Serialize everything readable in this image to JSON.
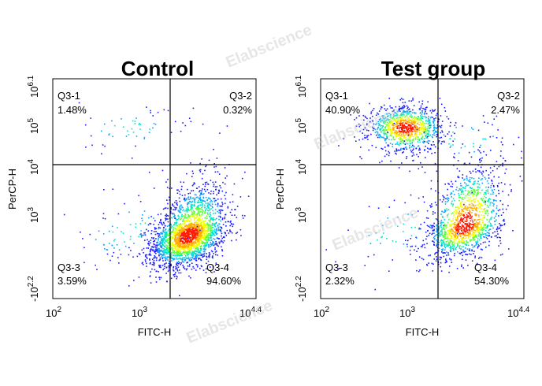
{
  "watermark": "Elabscience",
  "chart_data": [
    {
      "type": "scatter",
      "title": "Control",
      "xlabel": "FITC-H",
      "ylabel": "PerCP-H",
      "x_scale": "log",
      "y_scale": "log",
      "x_ticks": [
        {
          "base": "10",
          "exp": "2"
        },
        {
          "base": "10",
          "exp": "3"
        },
        {
          "base": "10",
          "exp": "4.4"
        }
      ],
      "y_ticks": [
        {
          "base": "-10",
          "exp": "2.2"
        },
        {
          "base": "10",
          "exp": "3"
        },
        {
          "base": "10",
          "exp": "4"
        },
        {
          "base": "10",
          "exp": "5"
        },
        {
          "base": "10",
          "exp": "6.1"
        }
      ],
      "quadrants": [
        {
          "name": "Q3-1",
          "value": "1.48%"
        },
        {
          "name": "Q3-2",
          "value": "0.32%"
        },
        {
          "name": "Q3-3",
          "value": "3.59%"
        },
        {
          "name": "Q3-4",
          "value": "94.60%"
        }
      ],
      "populations": [
        {
          "quadrant": "Q3-4",
          "x": 3.6,
          "y": 2.5,
          "fraction": 0.946
        },
        {
          "quadrant": "Q3-1",
          "x": 2.9,
          "y": 5.2,
          "fraction": 0.0148
        },
        {
          "quadrant": "Q3-3",
          "x": 2.9,
          "y": 2.6,
          "fraction": 0.0359
        }
      ]
    },
    {
      "type": "scatter",
      "title": "Test group",
      "xlabel": "FITC-H",
      "ylabel": "PerCP-H",
      "x_scale": "log",
      "y_scale": "log",
      "x_ticks": [
        {
          "base": "10",
          "exp": "2"
        },
        {
          "base": "10",
          "exp": "3"
        },
        {
          "base": "10",
          "exp": "4.4"
        }
      ],
      "y_ticks": [
        {
          "base": "-10",
          "exp": "2.2"
        },
        {
          "base": "10",
          "exp": "3"
        },
        {
          "base": "10",
          "exp": "4"
        },
        {
          "base": "10",
          "exp": "5"
        },
        {
          "base": "10",
          "exp": "6.1"
        }
      ],
      "quadrants": [
        {
          "name": "Q3-1",
          "value": "40.90%"
        },
        {
          "name": "Q3-2",
          "value": "2.47%"
        },
        {
          "name": "Q3-3",
          "value": "2.32%"
        },
        {
          "name": "Q3-4",
          "value": "54.30%"
        }
      ],
      "populations": [
        {
          "quadrant": "Q3-1",
          "x": 3.0,
          "y": 5.2,
          "fraction": 0.409
        },
        {
          "quadrant": "Q3-4",
          "x": 3.7,
          "y": 2.9,
          "fraction": 0.543
        },
        {
          "quadrant": "Q3-2",
          "x": 3.7,
          "y": 4.9,
          "fraction": 0.0247
        },
        {
          "quadrant": "Q3-3",
          "x": 2.9,
          "y": 2.6,
          "fraction": 0.0232
        }
      ]
    }
  ]
}
